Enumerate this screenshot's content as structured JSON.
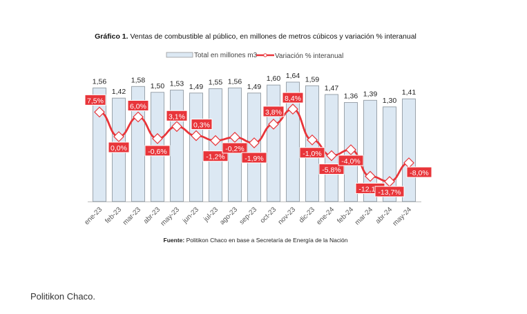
{
  "caption": "Politikon Chaco.",
  "chart_data": {
    "type": "bar+line",
    "title_bold": "Gráfico 1.",
    "title": "Ventas de combustible al público, en millones de metros cúbicos y variación % interanual",
    "source_bold": "Fuente:",
    "source": "Politikon Chaco en base a Secretaría de Energía de la Nación",
    "categories": [
      "ene-23",
      "feb-23",
      "mar-23",
      "abr-23",
      "may-23",
      "jun-23",
      "jul-23",
      "ago-23",
      "sep-23",
      "oct-23",
      "nov-23",
      "dic-23",
      "ene-24",
      "feb-24",
      "mar-24",
      "abr-24",
      "may-24"
    ],
    "series": [
      {
        "name": "Total en millones m3",
        "type": "bar",
        "color": "#dce8f3",
        "values": [
          1.56,
          1.42,
          1.58,
          1.5,
          1.53,
          1.49,
          1.55,
          1.56,
          1.49,
          1.6,
          1.64,
          1.59,
          1.47,
          1.36,
          1.39,
          1.3,
          1.41
        ],
        "labels": [
          "1,56",
          "1,42",
          "1,58",
          "1,50",
          "1,53",
          "1,49",
          "1,55",
          "1,56",
          "1,49",
          "1,60",
          "1,64",
          "1,59",
          "1,47",
          "1,36",
          "1,39",
          "1,30",
          "1,41"
        ]
      },
      {
        "name": "Variación % interanual",
        "type": "line",
        "color": "#e8353a",
        "values": [
          7.5,
          0.0,
          6.0,
          -0.6,
          3.1,
          0.3,
          -1.2,
          -0.2,
          -1.9,
          3.8,
          8.4,
          -1.0,
          -5.8,
          -4.0,
          -12.1,
          -13.7,
          -8.0
        ],
        "labels": [
          "7,5%",
          "0,0%",
          "6,0%",
          "-0,6%",
          "3,1%",
          "0,3%",
          "-1,2%",
          "-0,2%",
          "-1,9%",
          "3,8%",
          "8,4%",
          "-1,0%",
          "-5,8%",
          "-4,0%",
          "-12,1%",
          "-13,7%",
          "-8,0%"
        ]
      }
    ],
    "legend": "top-center",
    "grid": false
  }
}
